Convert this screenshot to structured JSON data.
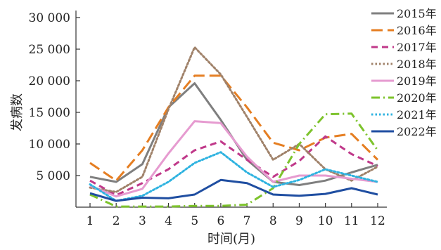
{
  "chart_data": {
    "type": "line",
    "title": "",
    "xlabel": "时间(月)",
    "ylabel": "发病数",
    "categories": [
      "1",
      "2",
      "3",
      "4",
      "5",
      "6",
      "7",
      "8",
      "9",
      "10",
      "11",
      "12"
    ],
    "x": [
      1,
      2,
      3,
      4,
      5,
      6,
      7,
      8,
      9,
      10,
      11,
      12
    ],
    "ylim": [
      0,
      30000
    ],
    "yticks": [
      5000,
      10000,
      15000,
      20000,
      25000,
      30000
    ],
    "ytick_labels": [
      "5 000",
      "10 000",
      "15 000",
      "20 000",
      "25 000",
      "30 000"
    ],
    "grid": false,
    "legend_position": "right",
    "series": [
      {
        "name": "2015年",
        "color": "#7f7f7f",
        "dash": "solid",
        "values": [
          4800,
          4000,
          6800,
          15800,
          19600,
          13800,
          7500,
          4000,
          3500,
          4200,
          5500,
          6700
        ]
      },
      {
        "name": "2016年",
        "color": "#e57e22",
        "dash": "longdash",
        "values": [
          7000,
          4200,
          9000,
          15800,
          20800,
          20800,
          15800,
          10200,
          9000,
          11000,
          11600,
          7500
        ]
      },
      {
        "name": "2017年",
        "color": "#c0398a",
        "dash": "dash",
        "values": [
          4200,
          1900,
          3800,
          6000,
          9000,
          10400,
          7500,
          4800,
          7300,
          11200,
          8400,
          6500
        ]
      },
      {
        "name": "2018年",
        "color": "#a0826a",
        "dash": "dot",
        "values": [
          3100,
          2400,
          4800,
          15500,
          25300,
          21000,
          14300,
          7500,
          10000,
          6000,
          4200,
          6400
        ]
      },
      {
        "name": "2019年",
        "color": "#e69bd0",
        "dash": "solid",
        "values": [
          3400,
          1700,
          2900,
          8500,
          13600,
          13300,
          8000,
          4000,
          5000,
          5000,
          4500,
          4000
        ]
      },
      {
        "name": "2020年",
        "color": "#7dc32c",
        "dash": "dashdot",
        "values": [
          2000,
          100,
          100,
          100,
          200,
          200,
          400,
          3000,
          10000,
          14700,
          14800,
          9000
        ]
      },
      {
        "name": "2021年",
        "color": "#2fb3e0",
        "dash": "dot",
        "values": [
          3600,
          1000,
          1800,
          4000,
          7000,
          8700,
          5500,
          3200,
          4300,
          6000,
          5000,
          4000
        ]
      },
      {
        "name": "2022年",
        "color": "#1f4ea1",
        "dash": "solid",
        "values": [
          2200,
          1000,
          1500,
          1400,
          2000,
          4300,
          3800,
          2000,
          1800,
          2100,
          3000,
          2000
        ]
      }
    ]
  }
}
